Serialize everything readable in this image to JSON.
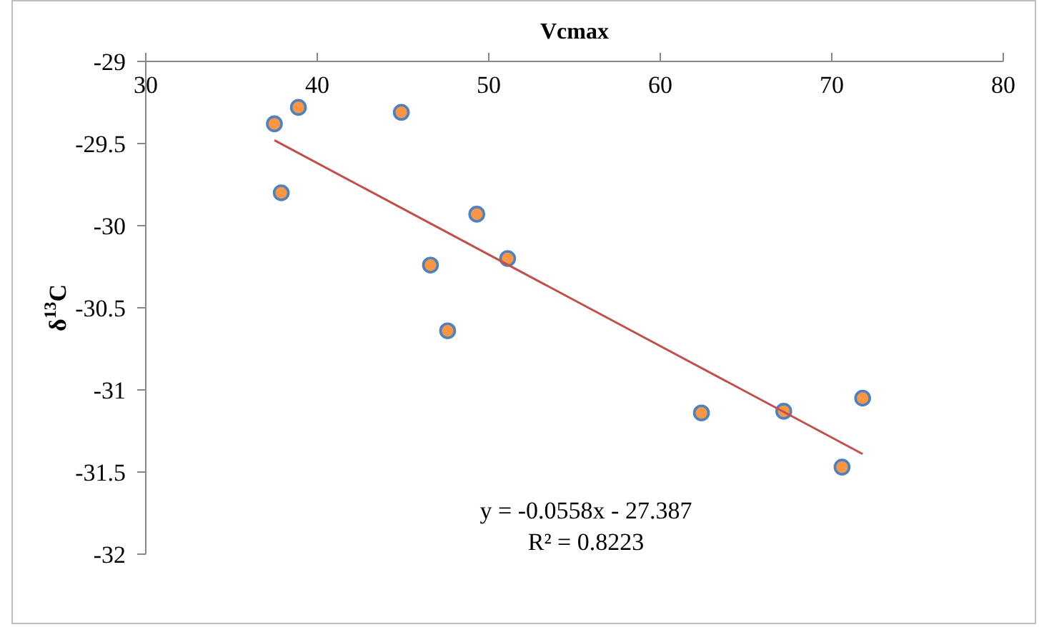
{
  "chart_data": {
    "type": "scatter",
    "xlabel": "Vcmax",
    "ylabel": "δ$^{13}$C",
    "xlim": [
      30,
      80
    ],
    "xticks": [
      30,
      40,
      50,
      60,
      70,
      80
    ],
    "ylim": [
      -32,
      -29
    ],
    "yticks": [
      -29,
      -29.5,
      -30,
      -30.5,
      -31,
      -31.5,
      -32
    ],
    "marker": "circle",
    "series": [
      {
        "color": "#f79646",
        "x": [
          37.5,
          38.9,
          44.9,
          37.9,
          49.3,
          46.6,
          51.1,
          47.6,
          62.4,
          67.2,
          71.8,
          70.6
        ],
        "values": [
          -29.38,
          -29.28,
          -29.31,
          -29.8,
          -29.93,
          -30.24,
          -30.2,
          -30.64,
          -31.14,
          -31.13,
          -31.05,
          -31.47
        ]
      },
      {
        "type": "line",
        "color": "#c0504d",
        "marker": "none",
        "line_style": "solid",
        "x": [
          37.5,
          71.8
        ],
        "values": [
          -29.48,
          -31.39
        ]
      }
    ],
    "annotations": [
      "y = -0.0558x - 27.387",
      "R² = 0.8223"
    ]
  }
}
